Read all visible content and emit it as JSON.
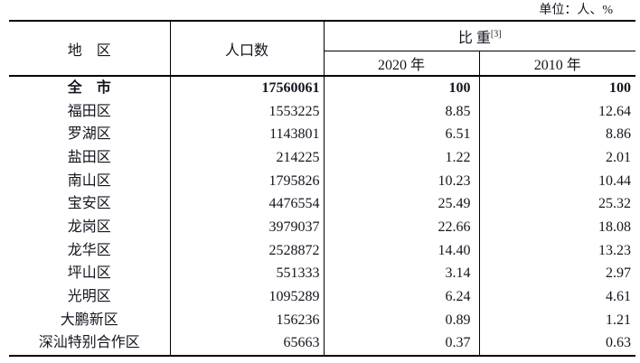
{
  "unit_note": "单位：人、%",
  "colors": {
    "background": "#ffffff",
    "text": "#15151f",
    "border": "#000000"
  },
  "table": {
    "header": {
      "region": "地　区",
      "population": "人口数",
      "proportion": "比 重",
      "proportion_superscript": "[3]",
      "year_2020": "2020 年",
      "year_2010": "2010 年"
    },
    "rows": [
      {
        "region": "全　市",
        "population": "17560061",
        "pct_2020": "100",
        "pct_2010": "100",
        "bold": true
      },
      {
        "region": "福田区",
        "population": "1553225",
        "pct_2020": "8.85",
        "pct_2010": "12.64",
        "bold": false
      },
      {
        "region": "罗湖区",
        "population": "1143801",
        "pct_2020": "6.51",
        "pct_2010": "8.86",
        "bold": false
      },
      {
        "region": "盐田区",
        "population": "214225",
        "pct_2020": "1.22",
        "pct_2010": "2.01",
        "bold": false
      },
      {
        "region": "南山区",
        "population": "1795826",
        "pct_2020": "10.23",
        "pct_2010": "10.44",
        "bold": false
      },
      {
        "region": "宝安区",
        "population": "4476554",
        "pct_2020": "25.49",
        "pct_2010": "25.32",
        "bold": false
      },
      {
        "region": "龙岗区",
        "population": "3979037",
        "pct_2020": "22.66",
        "pct_2010": "18.08",
        "bold": false
      },
      {
        "region": "龙华区",
        "population": "2528872",
        "pct_2020": "14.40",
        "pct_2010": "13.23",
        "bold": false
      },
      {
        "region": "坪山区",
        "population": "551333",
        "pct_2020": "3.14",
        "pct_2010": "2.97",
        "bold": false
      },
      {
        "region": "光明区",
        "population": "1095289",
        "pct_2020": "6.24",
        "pct_2010": "4.61",
        "bold": false
      },
      {
        "region": "大鹏新区",
        "population": "156236",
        "pct_2020": "0.89",
        "pct_2010": "1.21",
        "bold": false
      },
      {
        "region": "深汕特别合作区",
        "population": "65663",
        "pct_2020": "0.37",
        "pct_2010": "0.63",
        "bold": false
      }
    ]
  }
}
